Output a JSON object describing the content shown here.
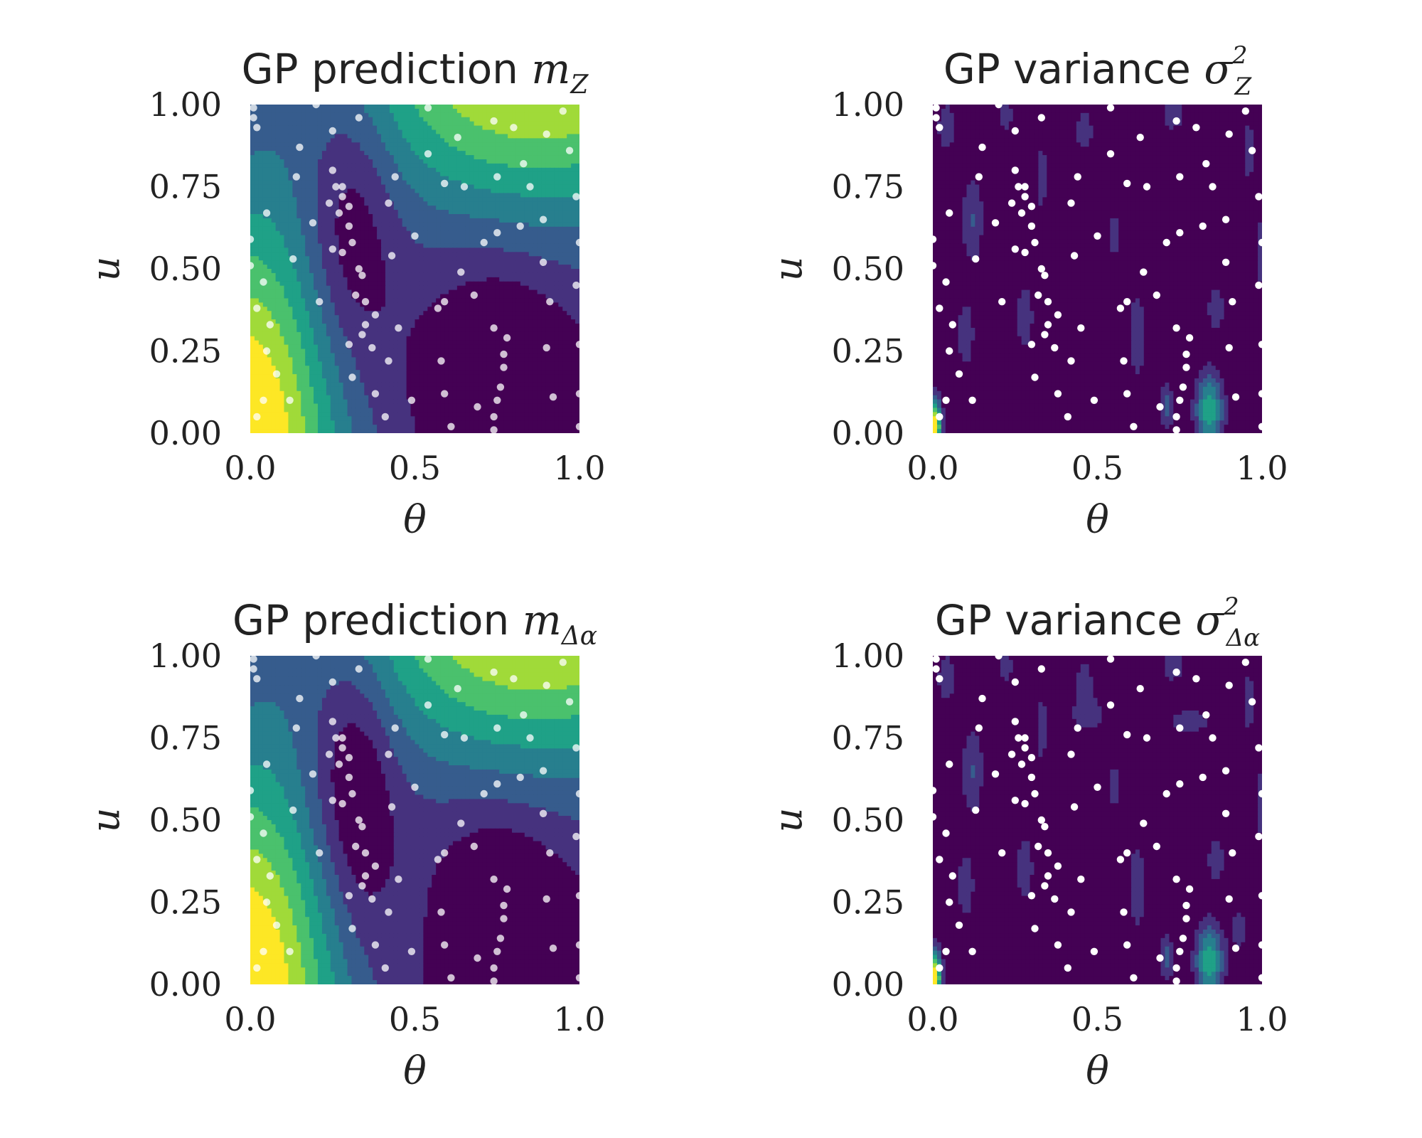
{
  "figure": {
    "colormap": [
      "#440154",
      "#46327e",
      "#365c8d",
      "#277f8e",
      "#1fa187",
      "#4ac16d",
      "#a0da39",
      "#fde725"
    ],
    "point_color": "#ffffff",
    "panels": [
      {
        "title_text": "GP prediction ",
        "title_math": "m",
        "title_sub": "Z",
        "title_sup": "",
        "xlabel": "θ",
        "ylabel": "u",
        "xticks": [
          "0.0",
          "0.5",
          "1.0"
        ],
        "yticks": [
          "0.00",
          "0.25",
          "0.50",
          "0.75",
          "1.00"
        ]
      },
      {
        "title_text": "GP variance ",
        "title_math": "σ",
        "title_sub": "Z",
        "title_sup": "2",
        "xlabel": "θ",
        "ylabel": "u",
        "xticks": [
          "0.0",
          "0.5",
          "1.0"
        ],
        "yticks": [
          "0.00",
          "0.25",
          "0.50",
          "0.75",
          "1.00"
        ]
      },
      {
        "title_text": "GP prediction ",
        "title_math": "m",
        "title_sub": "Δα",
        "title_sup": "",
        "xlabel": "θ",
        "ylabel": "u",
        "xticks": [
          "0.0",
          "0.5",
          "1.0"
        ],
        "yticks": [
          "0.00",
          "0.25",
          "0.50",
          "0.75",
          "1.00"
        ]
      },
      {
        "title_text": "GP variance ",
        "title_math": "σ",
        "title_sub": "Δα",
        "title_sup": "2",
        "xlabel": "θ",
        "ylabel": "u",
        "xticks": [
          "0.0",
          "0.5",
          "1.0"
        ],
        "yticks": [
          "0.00",
          "0.25",
          "0.50",
          "0.75",
          "1.00"
        ]
      }
    ]
  },
  "chart_data": [
    {
      "type": "heatmap",
      "subtype": "filled-contour with scatter",
      "title": "GP prediction m_Z",
      "xlabel": "θ",
      "ylabel": "u",
      "xlim": [
        0,
        1
      ],
      "ylim": [
        0,
        1
      ],
      "contour_field": "mean",
      "levels": 8
    },
    {
      "type": "heatmap",
      "subtype": "filled-contour with scatter",
      "title": "GP variance σ²_Z",
      "xlabel": "θ",
      "ylabel": "u",
      "xlim": [
        0,
        1
      ],
      "ylim": [
        0,
        1
      ],
      "contour_field": "variance",
      "levels": 8
    },
    {
      "type": "heatmap",
      "subtype": "filled-contour with scatter",
      "title": "GP prediction m_Δα",
      "xlabel": "θ",
      "ylabel": "u",
      "xlim": [
        0,
        1
      ],
      "ylim": [
        0,
        1
      ],
      "contour_field": "mean",
      "levels": 8
    },
    {
      "type": "heatmap",
      "subtype": "filled-contour with scatter",
      "title": "GP variance σ²_Δα",
      "xlabel": "θ",
      "ylabel": "u",
      "xlim": [
        0,
        1
      ],
      "ylim": [
        0,
        1
      ],
      "contour_field": "variance",
      "levels": 8
    }
  ],
  "design_points": [
    [
      0.01,
      0.99
    ],
    [
      0.01,
      0.96
    ],
    [
      0.02,
      0.93
    ],
    [
      0.0,
      0.59
    ],
    [
      0.05,
      0.67
    ],
    [
      0.0,
      0.51
    ],
    [
      0.04,
      0.46
    ],
    [
      0.02,
      0.38
    ],
    [
      0.06,
      0.33
    ],
    [
      0.05,
      0.25
    ],
    [
      0.08,
      0.18
    ],
    [
      0.04,
      0.1
    ],
    [
      0.02,
      0.05
    ],
    [
      0.12,
      0.1
    ],
    [
      0.14,
      0.78
    ],
    [
      0.13,
      0.53
    ],
    [
      0.2,
      1.0
    ],
    [
      0.15,
      0.87
    ],
    [
      0.19,
      0.64
    ],
    [
      0.21,
      0.4
    ],
    [
      0.25,
      0.92
    ],
    [
      0.24,
      0.7
    ],
    [
      0.27,
      0.67
    ],
    [
      0.25,
      0.8
    ],
    [
      0.26,
      0.75
    ],
    [
      0.28,
      0.75
    ],
    [
      0.3,
      0.69
    ],
    [
      0.28,
      0.72
    ],
    [
      0.3,
      0.63
    ],
    [
      0.31,
      0.58
    ],
    [
      0.25,
      0.56
    ],
    [
      0.28,
      0.55
    ],
    [
      0.33,
      0.5
    ],
    [
      0.34,
      0.48
    ],
    [
      0.32,
      0.42
    ],
    [
      0.35,
      0.4
    ],
    [
      0.35,
      0.33
    ],
    [
      0.34,
      0.3
    ],
    [
      0.37,
      0.26
    ],
    [
      0.38,
      0.36
    ],
    [
      0.3,
      0.27
    ],
    [
      0.31,
      0.17
    ],
    [
      0.38,
      0.12
    ],
    [
      0.42,
      0.22
    ],
    [
      0.43,
      0.54
    ],
    [
      0.45,
      0.32
    ],
    [
      0.33,
      0.96
    ],
    [
      0.42,
      0.7
    ],
    [
      0.41,
      0.05
    ],
    [
      0.49,
      0.1
    ],
    [
      0.5,
      0.6
    ],
    [
      0.54,
      0.99
    ],
    [
      0.54,
      0.85
    ],
    [
      0.57,
      0.38
    ],
    [
      0.58,
      0.22
    ],
    [
      0.59,
      0.12
    ],
    [
      0.59,
      0.4
    ],
    [
      0.63,
      0.9
    ],
    [
      0.65,
      0.75
    ],
    [
      0.64,
      0.49
    ],
    [
      0.61,
      0.02
    ],
    [
      0.69,
      0.08
    ],
    [
      0.68,
      0.42
    ],
    [
      0.71,
      0.58
    ],
    [
      0.74,
      0.95
    ],
    [
      0.75,
      0.78
    ],
    [
      0.75,
      0.61
    ],
    [
      0.74,
      0.32
    ],
    [
      0.77,
      0.2
    ],
    [
      0.76,
      0.14
    ],
    [
      0.75,
      0.1
    ],
    [
      0.74,
      0.05
    ],
    [
      0.74,
      0.01
    ],
    [
      0.77,
      0.24
    ],
    [
      0.78,
      0.29
    ],
    [
      0.8,
      0.93
    ],
    [
      0.82,
      0.63
    ],
    [
      0.83,
      0.82
    ],
    [
      0.85,
      0.75
    ],
    [
      0.9,
      0.91
    ],
    [
      0.89,
      0.65
    ],
    [
      0.89,
      0.52
    ],
    [
      0.91,
      0.4
    ],
    [
      0.9,
      0.26
    ],
    [
      0.92,
      0.11
    ],
    [
      0.95,
      0.98
    ],
    [
      0.97,
      0.86
    ],
    [
      0.99,
      0.72
    ],
    [
      1.0,
      0.58
    ],
    [
      0.99,
      0.45
    ],
    [
      1.0,
      0.27
    ],
    [
      1.0,
      0.12
    ],
    [
      1.0,
      0.02
    ],
    [
      0.59,
      0.76
    ],
    [
      0.44,
      0.78
    ]
  ]
}
